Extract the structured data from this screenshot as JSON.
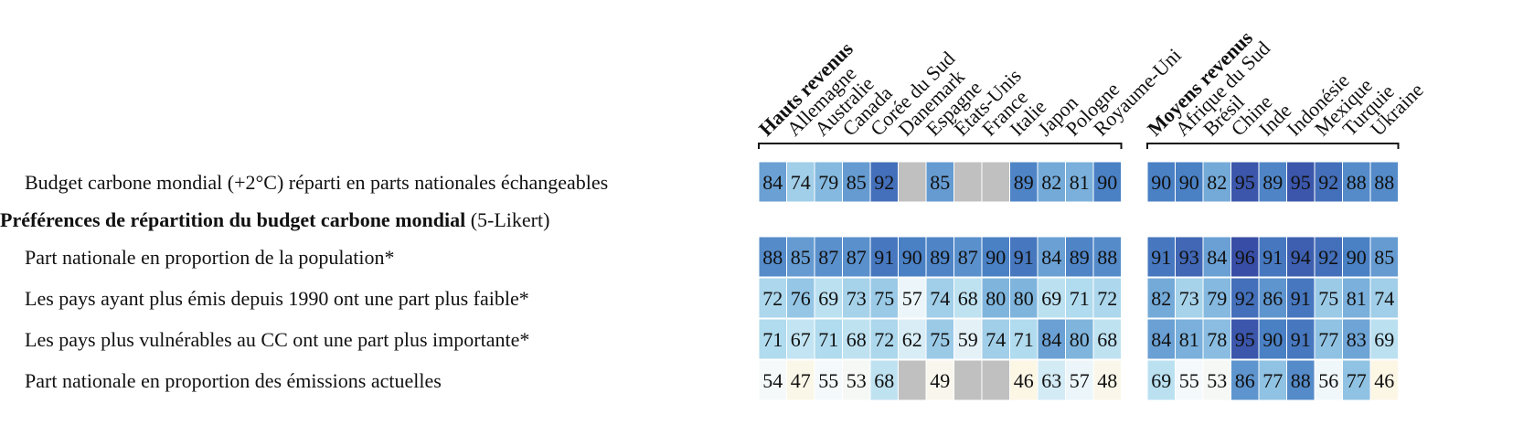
{
  "groups": [
    {
      "label": "Hauts revenus",
      "countries": [
        "Allemagne",
        "Australie",
        "Canada",
        "Corée du Sud",
        "Danemark",
        "Espagne",
        "États-Unis",
        "France",
        "Italie",
        "Japon",
        "Pologne",
        "Royaume-Uni"
      ]
    },
    {
      "label": "Moyens revenus",
      "countries": [
        "Afrique du Sud",
        "Brésil",
        "Chine",
        "Inde",
        "Indonésie",
        "Mexique",
        "Turquie",
        "Ukraine"
      ]
    }
  ],
  "rows": [
    {
      "label": "Budget carbone mondial (+2°C) réparti en parts nationales échangeables",
      "values": [
        [
          84,
          74,
          79,
          85,
          92,
          null,
          85,
          null,
          null,
          89,
          82,
          81,
          90
        ],
        [
          90,
          90,
          82,
          95,
          89,
          95,
          92,
          88,
          88
        ]
      ]
    },
    {
      "label": "Part nationale en proportion de la population*",
      "values": [
        [
          88,
          85,
          87,
          87,
          91,
          90,
          89,
          87,
          90,
          91,
          84,
          89,
          88
        ],
        [
          91,
          93,
          84,
          96,
          91,
          94,
          92,
          90,
          85
        ]
      ]
    },
    {
      "label": "Les pays ayant plus émis depuis 1990 ont une part plus faible*",
      "values": [
        [
          72,
          76,
          69,
          73,
          75,
          57,
          74,
          68,
          80,
          80,
          69,
          71,
          72
        ],
        [
          82,
          73,
          79,
          92,
          86,
          91,
          75,
          81,
          74
        ]
      ]
    },
    {
      "label": "Les pays plus vulnérables au CC ont une part plus importante*",
      "values": [
        [
          71,
          67,
          71,
          68,
          72,
          62,
          75,
          59,
          74,
          71,
          84,
          80,
          68
        ],
        [
          84,
          81,
          78,
          95,
          90,
          91,
          77,
          83,
          69
        ]
      ]
    },
    {
      "label": "Part nationale en proportion des émissions actuelles",
      "values": [
        [
          54,
          47,
          55,
          53,
          68,
          null,
          49,
          null,
          null,
          46,
          63,
          57,
          48
        ],
        [
          69,
          55,
          53,
          86,
          77,
          88,
          56,
          77,
          46
        ]
      ]
    }
  ],
  "section": {
    "label": "Préférences de répartition du budget carbone mondial",
    "note": "(5-Likert)"
  }
}
